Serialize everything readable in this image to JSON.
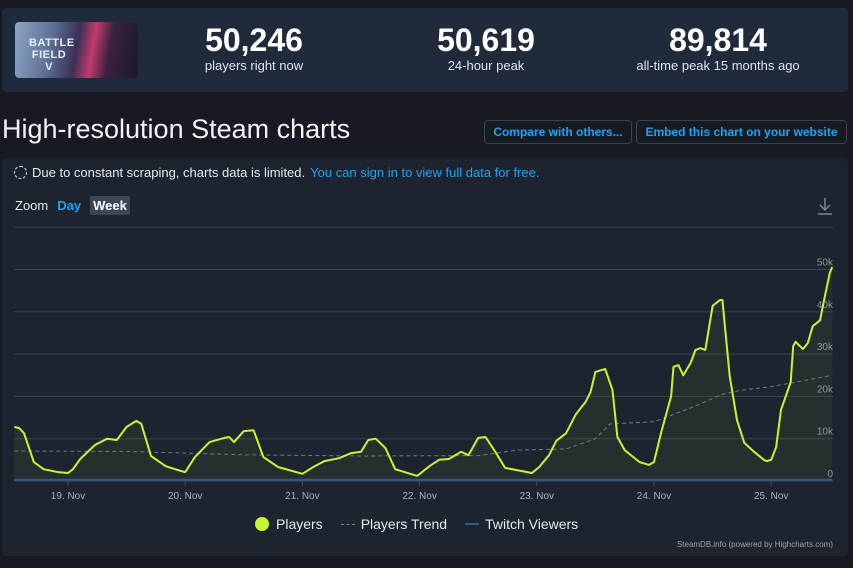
{
  "header": {
    "game_logo_text": "BATTLEFIELD V",
    "stats": [
      {
        "value": "50,246",
        "label": "players right now"
      },
      {
        "value": "50,619",
        "label": "24-hour peak"
      },
      {
        "value": "89,814",
        "label": "all-time peak 15 months ago"
      }
    ]
  },
  "title": "High-resolution Steam charts",
  "buttons": {
    "compare": "Compare with others...",
    "embed": "Embed this chart on your website"
  },
  "notice": {
    "text": "Due to constant scraping, charts data is limited.",
    "link": "You can sign in to view full data for free."
  },
  "zoom": {
    "label": "Zoom",
    "options": [
      "Day",
      "Week"
    ],
    "selected": "Week"
  },
  "icons": {
    "download": "download-icon",
    "loading": "spinner-icon"
  },
  "legend": [
    "Players",
    "Players Trend",
    "Twitch Viewers"
  ],
  "credits": "SteamDB.info (powered by Highcharts.com)",
  "colors": {
    "players": "#c7f72a",
    "trend": "#777777",
    "twitch": "#2a5d8a",
    "accent": "#1aa3f5"
  },
  "chart_data": {
    "type": "line",
    "x_ticks": [
      "19. Nov",
      "20. Nov",
      "21. Nov",
      "22. Nov",
      "23. Nov",
      "24. Nov",
      "25. Nov"
    ],
    "y_ticks": [
      "0",
      "10k",
      "20k",
      "30k",
      "40k",
      "50k"
    ],
    "ylim": [
      0,
      60000
    ],
    "xlim": [
      "Nov 18 13:00",
      "Nov 25 12:30"
    ],
    "grid": true,
    "legend_position": "bottom",
    "series": [
      {
        "name": "Players",
        "style": "solid",
        "points": [
          [
            "Nov 18 13:00",
            12800
          ],
          [
            "Nov 18 14:00",
            12500
          ],
          [
            "Nov 18 15:00",
            11300
          ],
          [
            "Nov 18 17:00",
            4500
          ],
          [
            "Nov 18 19:00",
            2800
          ],
          [
            "Nov 18 22:00",
            2100
          ],
          [
            "Nov 19 00:00",
            1900
          ],
          [
            "Nov 19 01:00",
            2800
          ],
          [
            "Nov 19 02:30",
            5200
          ],
          [
            "Nov 19 05:30",
            8500
          ],
          [
            "Nov 19 08:00",
            10000
          ],
          [
            "Nov 19 10:00",
            9700
          ],
          [
            "Nov 19 12:00",
            12800
          ],
          [
            "Nov 19 14:00",
            14200
          ],
          [
            "Nov 19 15:00",
            13500
          ],
          [
            "Nov 19 17:00",
            5900
          ],
          [
            "Nov 19 20:00",
            3500
          ],
          [
            "Nov 19 23:00",
            2400
          ],
          [
            "Nov 20 00:00",
            2100
          ],
          [
            "Nov 20 02:00",
            5700
          ],
          [
            "Nov 20 05:00",
            9200
          ],
          [
            "Nov 20 08:00",
            10200
          ],
          [
            "Nov 20 09:00",
            10400
          ],
          [
            "Nov 20 10:00",
            9200
          ],
          [
            "Nov 20 12:00",
            11800
          ],
          [
            "Nov 20 14:00",
            12000
          ],
          [
            "Nov 20 16:00",
            5700
          ],
          [
            "Nov 20 19:00",
            3300
          ],
          [
            "Nov 21 00:00",
            1700
          ],
          [
            "Nov 21 02:30",
            3500
          ],
          [
            "Nov 21 04:30",
            4700
          ],
          [
            "Nov 21 07:30",
            5400
          ],
          [
            "Nov 21 10:00",
            6600
          ],
          [
            "Nov 21 12:00",
            6900
          ],
          [
            "Nov 21 13:30",
            9700
          ],
          [
            "Nov 21 15:00",
            10000
          ],
          [
            "Nov 21 17:00",
            7800
          ],
          [
            "Nov 21 19:00",
            2800
          ],
          [
            "Nov 21 23:30",
            1200
          ],
          [
            "Nov 22 02:00",
            3500
          ],
          [
            "Nov 22 04:00",
            5000
          ],
          [
            "Nov 22 06:00",
            5200
          ],
          [
            "Nov 22 08:30",
            6900
          ],
          [
            "Nov 22 10:00",
            6100
          ],
          [
            "Nov 22 12:00",
            10200
          ],
          [
            "Nov 22 13:30",
            10400
          ],
          [
            "Nov 22 15:30",
            6900
          ],
          [
            "Nov 22 17:30",
            3100
          ],
          [
            "Nov 22 23:00",
            1900
          ],
          [
            "Nov 23 00:30",
            3300
          ],
          [
            "Nov 23 02:30",
            6100
          ],
          [
            "Nov 23 04:00",
            9500
          ],
          [
            "Nov 23 06:00",
            11300
          ],
          [
            "Nov 23 08:00",
            15800
          ],
          [
            "Nov 23 10:00",
            18700
          ],
          [
            "Nov 23 11:00",
            21000
          ],
          [
            "Nov 23 12:00",
            25800
          ],
          [
            "Nov 23 14:00",
            26500
          ],
          [
            "Nov 23 15:30",
            21500
          ],
          [
            "Nov 23 16:30",
            10400
          ],
          [
            "Nov 23 18:00",
            7300
          ],
          [
            "Nov 23 21:00",
            4500
          ],
          [
            "Nov 23 23:00",
            3800
          ],
          [
            "Nov 24 00:00",
            4500
          ],
          [
            "Nov 24 01:30",
            11600
          ],
          [
            "Nov 24 03:30",
            20000
          ],
          [
            "Nov 24 04:00",
            27000
          ],
          [
            "Nov 24 05:00",
            27400
          ],
          [
            "Nov 24 06:00",
            25000
          ],
          [
            "Nov 24 07:30",
            27900
          ],
          [
            "Nov 24 08:30",
            31000
          ],
          [
            "Nov 24 09:30",
            31400
          ],
          [
            "Nov 24 10:30",
            31000
          ],
          [
            "Nov 24 12:00",
            41400
          ],
          [
            "Nov 24 13:30",
            42800
          ],
          [
            "Nov 24 14:00",
            42800
          ],
          [
            "Nov 24 15:30",
            24800
          ],
          [
            "Nov 24 17:00",
            14400
          ],
          [
            "Nov 24 18:30",
            9000
          ],
          [
            "Nov 24 20:30",
            6900
          ],
          [
            "Nov 24 22:30",
            5000
          ],
          [
            "Nov 24 23:00",
            4700
          ],
          [
            "Nov 25 00:00",
            5000
          ],
          [
            "Nov 25 01:00",
            8000
          ],
          [
            "Nov 25 02:00",
            16800
          ],
          [
            "Nov 25 04:00",
            23400
          ],
          [
            "Nov 25 04:30",
            31900
          ],
          [
            "Nov 25 05:00",
            32900
          ],
          [
            "Nov 25 06:30",
            31200
          ],
          [
            "Nov 25 07:30",
            32600
          ],
          [
            "Nov 25 08:30",
            36600
          ],
          [
            "Nov 25 10:00",
            38000
          ],
          [
            "Nov 25 11:00",
            43700
          ],
          [
            "Nov 25 12:00",
            49200
          ],
          [
            "Nov 25 12:30",
            50600
          ]
        ]
      },
      {
        "name": "Players Trend",
        "style": "dashed",
        "points": [
          [
            "Nov 18 13:00",
            7100
          ],
          [
            "Nov 19 12:00",
            7000
          ],
          [
            "Nov 20 12:00",
            6200
          ],
          [
            "Nov 21 12:00",
            5900
          ],
          [
            "Nov 22 12:00",
            6000
          ],
          [
            "Nov 22 20:00",
            7300
          ],
          [
            "Nov 23 06:00",
            7600
          ],
          [
            "Nov 23 12:00",
            10000
          ],
          [
            "Nov 23 15:00",
            13500
          ],
          [
            "Nov 24 00:00",
            14000
          ],
          [
            "Nov 24 08:00",
            17500
          ],
          [
            "Nov 24 14:00",
            20500
          ],
          [
            "Nov 24 18:00",
            21500
          ],
          [
            "Nov 25 00:00",
            22300
          ],
          [
            "Nov 25 12:30",
            25000
          ]
        ]
      },
      {
        "name": "Twitch Viewers",
        "style": "solid",
        "points": [
          [
            "Nov 18 13:00",
            300
          ],
          [
            "Nov 20 12:00",
            300
          ],
          [
            "Nov 22 12:00",
            300
          ],
          [
            "Nov 24 12:00",
            300
          ],
          [
            "Nov 25 12:30",
            300
          ]
        ]
      }
    ]
  }
}
